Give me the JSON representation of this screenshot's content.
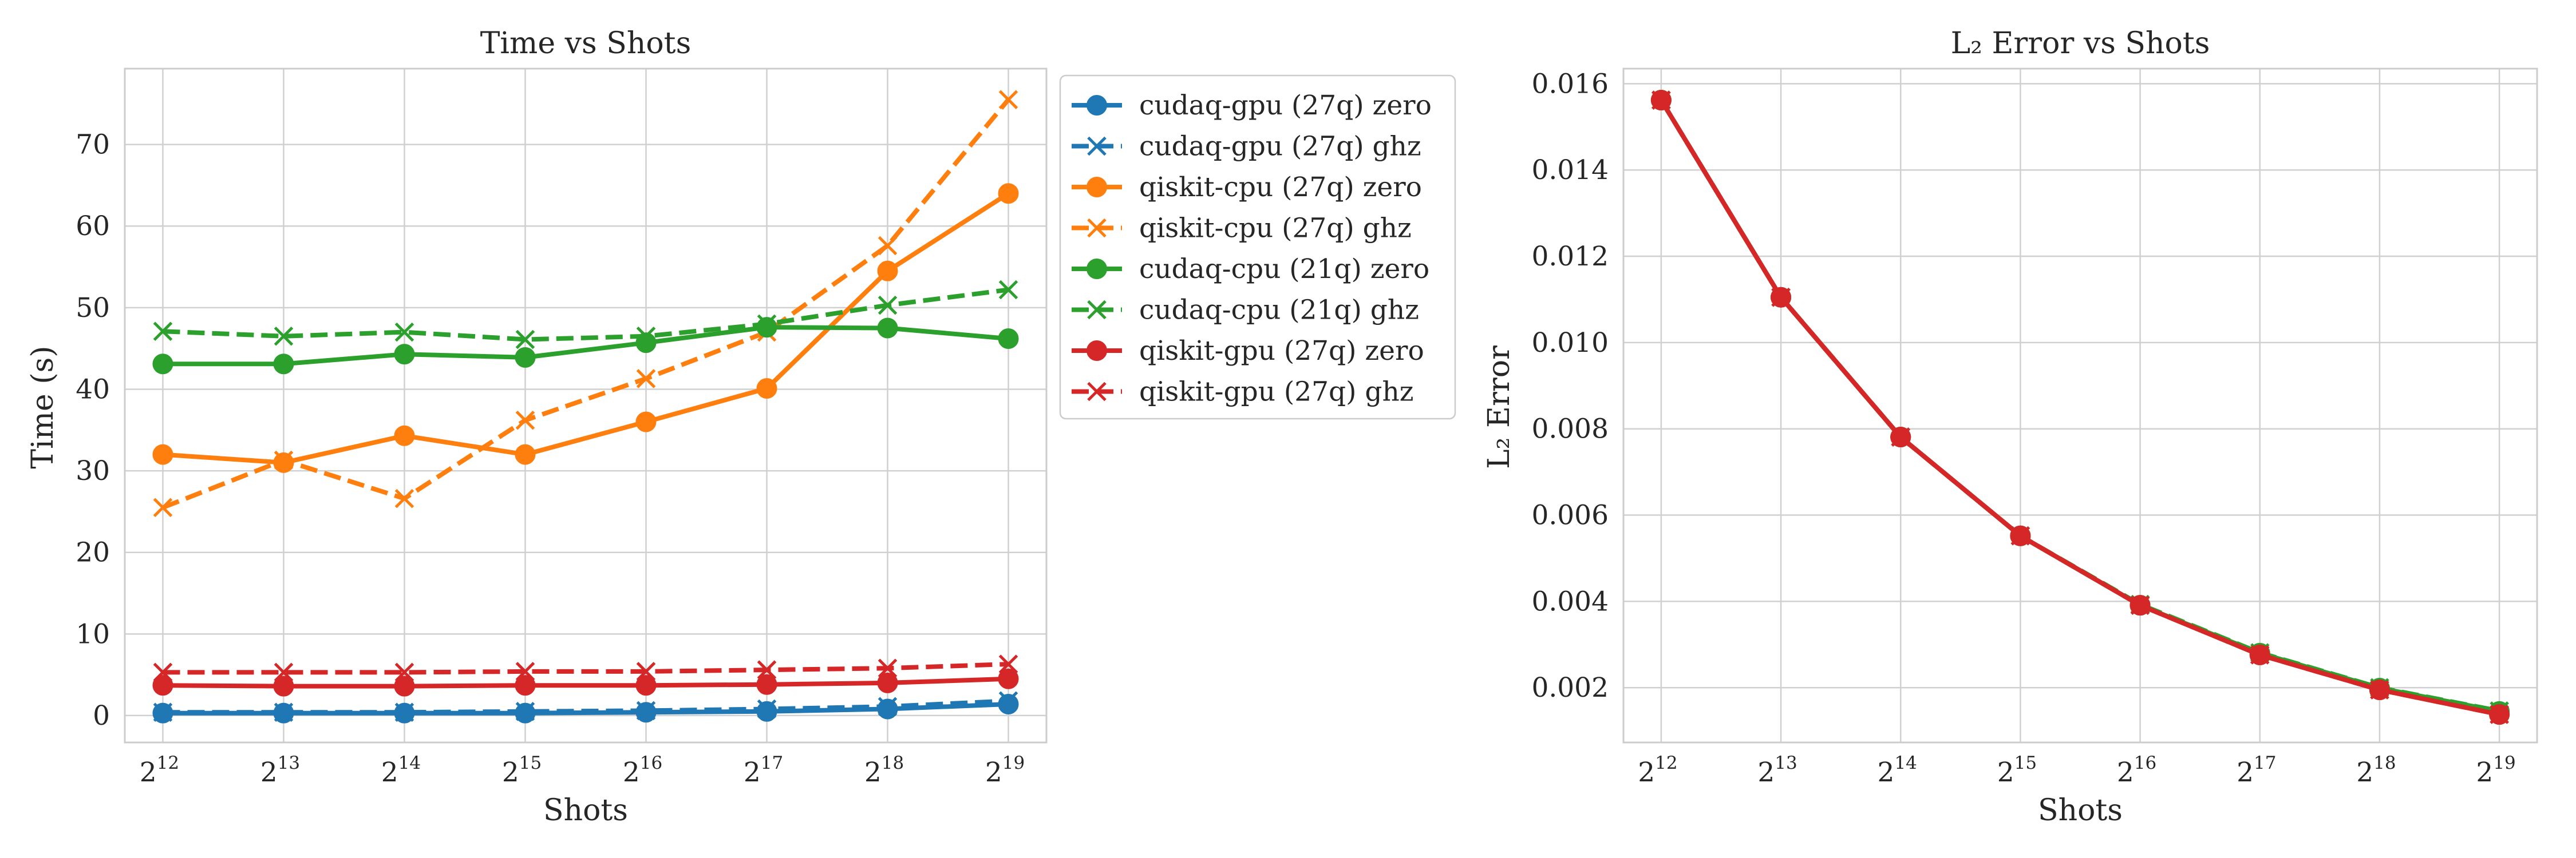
{
  "chart_data": [
    {
      "type": "line",
      "title": "Time vs Shots",
      "xlabel": "Shots",
      "ylabel": "Time (s)",
      "x": [
        4096,
        8192,
        16384,
        32768,
        65536,
        131072,
        262144,
        524288
      ],
      "x_tick_base": "2",
      "x_tick_exponents": [
        "12",
        "13",
        "14",
        "15",
        "16",
        "17",
        "18",
        "19"
      ],
      "xscale": "log2",
      "ylim": [
        -3.3,
        79.3
      ],
      "yticks": [
        0,
        10,
        20,
        30,
        40,
        50,
        60,
        70
      ],
      "grid": true,
      "legend_position": "outside-right-top",
      "series": [
        {
          "name": "cudaq-gpu (27q) zero",
          "color": "#1f77b4",
          "linestyle": "solid",
          "marker": "circle",
          "values": [
            0.3,
            0.3,
            0.3,
            0.3,
            0.4,
            0.5,
            0.8,
            1.4
          ]
        },
        {
          "name": "cudaq-gpu (27q) ghz",
          "color": "#1f77b4",
          "linestyle": "dashed",
          "marker": "x",
          "values": [
            0.4,
            0.4,
            0.4,
            0.5,
            0.6,
            0.8,
            1.1,
            1.8
          ]
        },
        {
          "name": "qiskit-cpu (27q) zero",
          "color": "#ff7f0e",
          "linestyle": "solid",
          "marker": "circle",
          "values": [
            32.0,
            31.0,
            34.3,
            32.0,
            36.0,
            40.1,
            54.5,
            64.0
          ]
        },
        {
          "name": "qiskit-cpu (27q) ghz",
          "color": "#ff7f0e",
          "linestyle": "dashed",
          "marker": "x",
          "values": [
            25.5,
            31.3,
            26.6,
            36.2,
            41.3,
            47.0,
            57.6,
            75.5
          ]
        },
        {
          "name": "cudaq-cpu (21q) zero",
          "color": "#2ca02c",
          "linestyle": "solid",
          "marker": "circle",
          "values": [
            43.1,
            43.1,
            44.3,
            43.9,
            45.7,
            47.6,
            47.5,
            46.2
          ]
        },
        {
          "name": "cudaq-cpu (21q) ghz",
          "color": "#2ca02c",
          "linestyle": "dashed",
          "marker": "x",
          "values": [
            47.1,
            46.5,
            47.0,
            46.1,
            46.5,
            48.0,
            50.3,
            52.2
          ]
        },
        {
          "name": "qiskit-gpu (27q) zero",
          "color": "#d62728",
          "linestyle": "solid",
          "marker": "circle",
          "values": [
            3.7,
            3.6,
            3.6,
            3.7,
            3.7,
            3.8,
            4.0,
            4.5
          ]
        },
        {
          "name": "qiskit-gpu (27q) ghz",
          "color": "#d62728",
          "linestyle": "dashed",
          "marker": "x",
          "values": [
            5.3,
            5.3,
            5.3,
            5.4,
            5.4,
            5.6,
            5.8,
            6.3
          ]
        }
      ]
    },
    {
      "type": "line",
      "title": "L₂ Error vs Shots",
      "xlabel": "Shots",
      "ylabel": "L₂ Error",
      "x": [
        4096,
        8192,
        16384,
        32768,
        65536,
        131072,
        262144,
        524288
      ],
      "x_tick_base": "2",
      "x_tick_exponents": [
        "12",
        "13",
        "14",
        "15",
        "16",
        "17",
        "18",
        "19"
      ],
      "xscale": "log2",
      "ylim": [
        0.00073,
        0.01635
      ],
      "yticks": [
        0.002,
        0.004,
        0.006,
        0.008,
        0.01,
        0.012,
        0.014,
        0.016
      ],
      "ytick_labels": [
        "0.002",
        "0.004",
        "0.006",
        "0.008",
        "0.010",
        "0.012",
        "0.014",
        "0.016"
      ],
      "grid": true,
      "series": [
        {
          "color": "#1f77b4",
          "linestyle": "solid",
          "marker": "circle",
          "values": [
            0.01562,
            0.01105,
            0.00781,
            0.00552,
            0.00391,
            0.00276,
            0.00195,
            0.00138
          ]
        },
        {
          "color": "#1f77b4",
          "linestyle": "dashed",
          "marker": "x",
          "values": [
            0.01562,
            0.01105,
            0.00781,
            0.00552,
            0.00391,
            0.00276,
            0.00195,
            0.00138
          ]
        },
        {
          "color": "#ff7f0e",
          "linestyle": "solid",
          "marker": "circle",
          "values": [
            0.01562,
            0.01105,
            0.00781,
            0.00552,
            0.00391,
            0.00276,
            0.00195,
            0.00138
          ]
        },
        {
          "color": "#ff7f0e",
          "linestyle": "dashed",
          "marker": "x",
          "values": [
            0.01562,
            0.01105,
            0.00781,
            0.00552,
            0.00391,
            0.00276,
            0.00195,
            0.00138
          ]
        },
        {
          "color": "#2ca02c",
          "linestyle": "solid",
          "marker": "circle",
          "values": [
            0.01562,
            0.01105,
            0.00781,
            0.00552,
            0.00391,
            0.0028,
            0.00199,
            0.00145
          ]
        },
        {
          "color": "#2ca02c",
          "linestyle": "dashed",
          "marker": "x",
          "values": [
            0.01562,
            0.01105,
            0.00781,
            0.00552,
            0.00393,
            0.00281,
            0.002,
            0.00146
          ]
        },
        {
          "color": "#d62728",
          "linestyle": "solid",
          "marker": "circle",
          "values": [
            0.01562,
            0.01105,
            0.00781,
            0.00552,
            0.00391,
            0.00276,
            0.00195,
            0.00138
          ]
        },
        {
          "color": "#d62728",
          "linestyle": "dashed",
          "marker": "x",
          "values": [
            0.01562,
            0.01105,
            0.00781,
            0.00552,
            0.00391,
            0.00276,
            0.00195,
            0.00138
          ]
        }
      ]
    }
  ]
}
